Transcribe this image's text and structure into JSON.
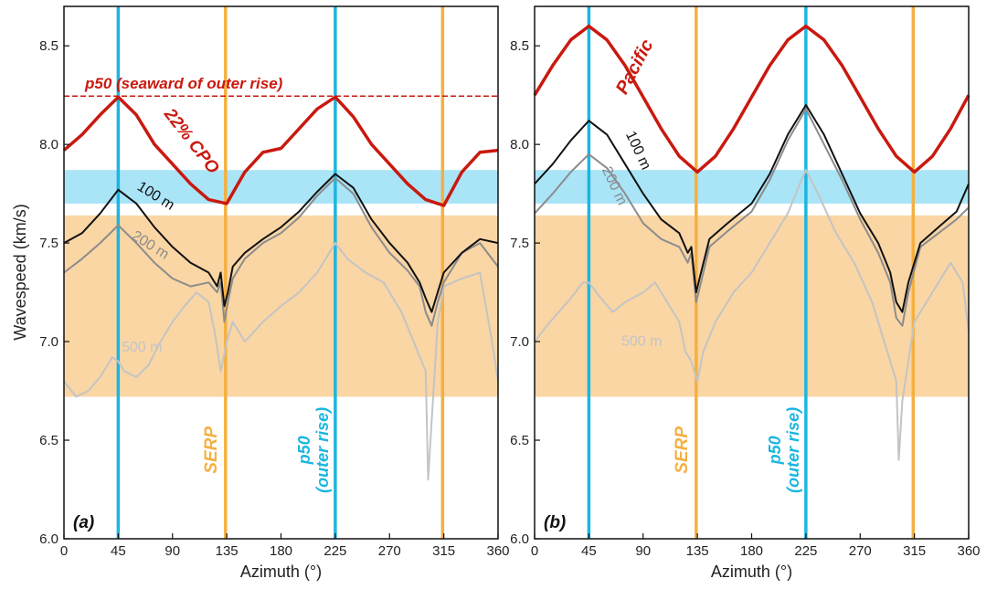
{
  "colors": {
    "cyan": "#1bb6e0",
    "orange": "#f5b041",
    "band_cyan": "#a9e4f7",
    "band_orange": "#fad6a5",
    "red": "#c9190f",
    "black": "#111111",
    "gray200": "#8c8c8c",
    "gray500": "#c4c4c4"
  },
  "chart_data": [
    {
      "type": "line",
      "panel_label": "(a)",
      "xlabel": "Azimuth (°)",
      "ylabel": "Wavespeed (km/s)",
      "xlim": [
        0,
        360
      ],
      "ylim": [
        6.0,
        8.7
      ],
      "xticks": [
        "0",
        "45",
        "90",
        "135",
        "180",
        "225",
        "270",
        "315",
        "360"
      ],
      "yticks": [
        "6.0",
        "6.5",
        "7.0",
        "7.5",
        "8.0",
        "8.5"
      ],
      "bands": [
        {
          "y": [
            7.7,
            7.87
          ],
          "color": "cyan"
        },
        {
          "y": [
            6.72,
            7.64
          ],
          "color": "orange"
        }
      ],
      "vlines": [
        {
          "x": 45,
          "color": "cyan"
        },
        {
          "x": 225,
          "color": "cyan"
        },
        {
          "x": 134,
          "color": "orange"
        },
        {
          "x": 314,
          "color": "orange"
        }
      ],
      "hline": {
        "y": 8.245,
        "label": "p50 (seaward of outer rise)"
      },
      "cpo_label": "22% CPO",
      "vline_labels": [
        {
          "text": "SERP",
          "x": 134
        },
        {
          "text": "p50",
          "x": 225
        },
        {
          "text": "(outer rise)",
          "x": 225
        }
      ],
      "depth_labels": [
        "100 m",
        "200 m",
        "500 m"
      ],
      "series": [
        {
          "key": "cpo",
          "color": "red",
          "x": [
            0,
            15,
            30,
            45,
            60,
            75,
            90,
            105,
            120,
            135,
            150,
            165,
            180,
            195,
            210,
            225,
            240,
            255,
            270,
            285,
            300,
            315,
            330,
            345,
            360
          ],
          "values": [
            7.97,
            8.05,
            8.15,
            8.24,
            8.15,
            8.0,
            7.9,
            7.8,
            7.72,
            7.7,
            7.86,
            7.96,
            7.98,
            8.08,
            8.18,
            8.24,
            8.14,
            8.0,
            7.9,
            7.8,
            7.72,
            7.69,
            7.86,
            7.96,
            7.97
          ]
        },
        {
          "key": "d100",
          "color": "black",
          "x": [
            0,
            15,
            30,
            45,
            60,
            75,
            90,
            105,
            120,
            127,
            130,
            133,
            136,
            140,
            150,
            165,
            180,
            195,
            210,
            225,
            240,
            255,
            270,
            285,
            295,
            300,
            305,
            310,
            315,
            330,
            345,
            360
          ],
          "values": [
            7.5,
            7.55,
            7.65,
            7.77,
            7.7,
            7.58,
            7.48,
            7.4,
            7.35,
            7.28,
            7.35,
            7.18,
            7.25,
            7.38,
            7.45,
            7.52,
            7.58,
            7.66,
            7.76,
            7.85,
            7.78,
            7.62,
            7.5,
            7.4,
            7.3,
            7.22,
            7.15,
            7.25,
            7.35,
            7.45,
            7.52,
            7.5
          ]
        },
        {
          "key": "d200",
          "color": "gray200",
          "x": [
            0,
            15,
            30,
            45,
            60,
            75,
            90,
            105,
            120,
            127,
            130,
            133,
            136,
            140,
            150,
            165,
            180,
            195,
            210,
            225,
            240,
            255,
            270,
            285,
            295,
            300,
            305,
            310,
            315,
            330,
            345,
            360
          ],
          "values": [
            7.35,
            7.42,
            7.5,
            7.59,
            7.5,
            7.4,
            7.32,
            7.28,
            7.3,
            7.25,
            7.3,
            7.1,
            7.2,
            7.32,
            7.42,
            7.5,
            7.55,
            7.63,
            7.74,
            7.83,
            7.75,
            7.58,
            7.45,
            7.36,
            7.28,
            7.15,
            7.08,
            7.2,
            7.3,
            7.45,
            7.5,
            7.38
          ]
        },
        {
          "key": "d500",
          "color": "gray500",
          "x": [
            0,
            10,
            20,
            30,
            40,
            45,
            50,
            60,
            70,
            80,
            90,
            100,
            110,
            120,
            125,
            130,
            135,
            140,
            145,
            150,
            165,
            180,
            195,
            210,
            220,
            225,
            235,
            250,
            265,
            280,
            290,
            300,
            302,
            305,
            308,
            310,
            315,
            330,
            345,
            355,
            360
          ],
          "values": [
            6.8,
            6.72,
            6.75,
            6.82,
            6.92,
            6.9,
            6.85,
            6.82,
            6.88,
            7.0,
            7.1,
            7.18,
            7.25,
            7.2,
            7.05,
            6.85,
            7.0,
            7.1,
            7.05,
            7.0,
            7.1,
            7.18,
            7.25,
            7.35,
            7.45,
            7.5,
            7.42,
            7.35,
            7.3,
            7.15,
            7.0,
            6.85,
            6.3,
            6.6,
            6.9,
            7.1,
            7.28,
            7.32,
            7.35,
            7.0,
            6.8
          ]
        }
      ]
    },
    {
      "type": "line",
      "panel_label": "(b)",
      "xlabel": "Azimuth (°)",
      "ylabel": "",
      "xlim": [
        0,
        360
      ],
      "ylim": [
        6.0,
        8.7
      ],
      "xticks": [
        "0",
        "45",
        "90",
        "135",
        "180",
        "225",
        "270",
        "315",
        "360"
      ],
      "yticks": [
        "6.0",
        "6.5",
        "7.0",
        "7.5",
        "8.0",
        "8.5"
      ],
      "bands": [
        {
          "y": [
            7.7,
            7.87
          ],
          "color": "cyan"
        },
        {
          "y": [
            6.72,
            7.64
          ],
          "color": "orange"
        }
      ],
      "vlines": [
        {
          "x": 45,
          "color": "cyan"
        },
        {
          "x": 225,
          "color": "cyan"
        },
        {
          "x": 134,
          "color": "orange"
        },
        {
          "x": 314,
          "color": "orange"
        }
      ],
      "pacific_label": "Pacific",
      "vline_labels": [
        {
          "text": "SERP",
          "x": 134
        },
        {
          "text": "p50",
          "x": 225
        },
        {
          "text": "(outer rise)",
          "x": 225
        }
      ],
      "depth_labels": [
        "100 m",
        "200 m",
        "500 m"
      ],
      "series": [
        {
          "key": "pacific",
          "color": "red",
          "x": [
            0,
            15,
            30,
            45,
            60,
            75,
            90,
            105,
            120,
            135,
            150,
            165,
            180,
            195,
            210,
            225,
            240,
            255,
            270,
            285,
            300,
            315,
            330,
            345,
            360
          ],
          "values": [
            8.25,
            8.4,
            8.53,
            8.6,
            8.53,
            8.4,
            8.24,
            8.08,
            7.94,
            7.86,
            7.94,
            8.08,
            8.24,
            8.4,
            8.53,
            8.6,
            8.53,
            8.4,
            8.24,
            8.08,
            7.94,
            7.86,
            7.94,
            8.08,
            8.25
          ]
        },
        {
          "key": "d100",
          "color": "black",
          "x": [
            0,
            15,
            30,
            45,
            60,
            75,
            90,
            105,
            120,
            127,
            130,
            134,
            138,
            145,
            160,
            180,
            195,
            210,
            225,
            240,
            255,
            270,
            285,
            295,
            300,
            305,
            310,
            320,
            335,
            350,
            360
          ],
          "values": [
            7.8,
            7.9,
            8.02,
            8.12,
            8.05,
            7.9,
            7.75,
            7.62,
            7.55,
            7.45,
            7.48,
            7.25,
            7.35,
            7.52,
            7.6,
            7.7,
            7.85,
            8.05,
            8.2,
            8.05,
            7.85,
            7.65,
            7.5,
            7.35,
            7.2,
            7.15,
            7.3,
            7.5,
            7.58,
            7.66,
            7.8
          ]
        },
        {
          "key": "d200",
          "color": "gray200",
          "x": [
            0,
            15,
            30,
            45,
            60,
            75,
            90,
            105,
            120,
            127,
            130,
            134,
            138,
            145,
            160,
            180,
            195,
            210,
            225,
            240,
            255,
            270,
            285,
            295,
            300,
            305,
            310,
            320,
            335,
            350,
            360
          ],
          "values": [
            7.65,
            7.75,
            7.86,
            7.95,
            7.88,
            7.75,
            7.6,
            7.52,
            7.48,
            7.4,
            7.45,
            7.2,
            7.3,
            7.48,
            7.56,
            7.66,
            7.82,
            8.02,
            8.18,
            8.0,
            7.82,
            7.62,
            7.45,
            7.3,
            7.12,
            7.08,
            7.25,
            7.48,
            7.55,
            7.62,
            7.68
          ]
        },
        {
          "key": "d500",
          "color": "gray500",
          "x": [
            0,
            10,
            20,
            30,
            40,
            45,
            55,
            65,
            75,
            90,
            100,
            110,
            120,
            125,
            130,
            135,
            140,
            150,
            165,
            180,
            195,
            210,
            220,
            225,
            235,
            250,
            265,
            280,
            290,
            300,
            302,
            305,
            310,
            315,
            330,
            345,
            355,
            360
          ],
          "values": [
            7.0,
            7.08,
            7.15,
            7.22,
            7.3,
            7.3,
            7.22,
            7.15,
            7.2,
            7.25,
            7.3,
            7.2,
            7.1,
            6.95,
            6.9,
            6.8,
            6.95,
            7.1,
            7.25,
            7.35,
            7.5,
            7.65,
            7.8,
            7.87,
            7.75,
            7.55,
            7.4,
            7.2,
            7.0,
            6.8,
            6.4,
            6.7,
            6.9,
            7.1,
            7.25,
            7.4,
            7.3,
            7.05
          ]
        }
      ]
    }
  ]
}
